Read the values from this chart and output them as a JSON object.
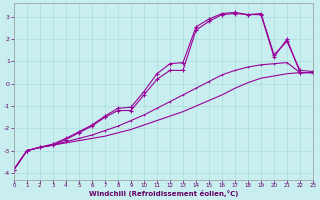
{
  "xlabel": "Windchill (Refroidissement éolien,°C)",
  "bg_color": "#c8eef0",
  "grid_color": "#aadddd",
  "line_color": "#990099",
  "text_color": "#660066",
  "xlim": [
    0,
    23
  ],
  "ylim": [
    -4.3,
    3.6
  ],
  "xticks": [
    0,
    1,
    2,
    3,
    4,
    5,
    6,
    7,
    8,
    9,
    10,
    11,
    12,
    13,
    14,
    15,
    16,
    17,
    18,
    19,
    20,
    21,
    22,
    23
  ],
  "yticks": [
    -4,
    -3,
    -2,
    -1,
    0,
    1,
    2,
    3
  ],
  "line1_x": [
    0,
    1,
    2,
    3,
    4,
    5,
    6,
    7,
    8,
    9,
    10,
    11,
    12,
    13,
    14,
    15,
    16,
    17,
    18,
    19,
    20,
    21,
    22,
    23
  ],
  "line1_y": [
    -3.85,
    -3.0,
    -2.85,
    -2.75,
    -2.65,
    -2.55,
    -2.45,
    -2.35,
    -2.2,
    -2.05,
    -1.85,
    -1.65,
    -1.45,
    -1.25,
    -1.0,
    -0.75,
    -0.5,
    -0.2,
    0.05,
    0.25,
    0.35,
    0.45,
    0.5,
    0.5
  ],
  "line2_x": [
    0,
    1,
    2,
    3,
    4,
    5,
    6,
    7,
    8,
    9,
    10,
    11,
    12,
    13,
    14,
    15,
    16,
    17,
    18,
    19,
    20,
    21,
    22,
    23
  ],
  "line2_y": [
    -3.85,
    -3.0,
    -2.85,
    -2.75,
    -2.6,
    -2.45,
    -2.3,
    -2.1,
    -1.9,
    -1.65,
    -1.4,
    -1.1,
    -0.8,
    -0.5,
    -0.2,
    0.1,
    0.4,
    0.6,
    0.75,
    0.85,
    0.9,
    0.95,
    0.5,
    0.5
  ],
  "line3_x": [
    0,
    1,
    2,
    3,
    4,
    5,
    6,
    7,
    8,
    9,
    10,
    11,
    12,
    13,
    14,
    15,
    16,
    17,
    18,
    19,
    20,
    21,
    22,
    23
  ],
  "line3_y": [
    -3.85,
    -3.0,
    -2.85,
    -2.75,
    -2.5,
    -2.2,
    -1.9,
    -1.5,
    -1.2,
    -1.2,
    -0.5,
    0.2,
    0.6,
    0.6,
    2.4,
    2.8,
    3.1,
    3.15,
    3.1,
    3.1,
    1.2,
    2.0,
    0.5,
    0.5
  ],
  "line4_x": [
    0,
    1,
    2,
    3,
    4,
    5,
    6,
    7,
    8,
    9,
    10,
    11,
    12,
    13,
    14,
    15,
    16,
    17,
    18,
    19,
    20,
    21,
    22,
    23
  ],
  "line4_y": [
    -3.85,
    -3.0,
    -2.85,
    -2.7,
    -2.45,
    -2.15,
    -1.85,
    -1.45,
    -1.1,
    -1.05,
    -0.35,
    0.45,
    0.9,
    0.95,
    2.55,
    2.9,
    3.15,
    3.2,
    3.1,
    3.15,
    1.3,
    1.9,
    0.6,
    0.55
  ]
}
